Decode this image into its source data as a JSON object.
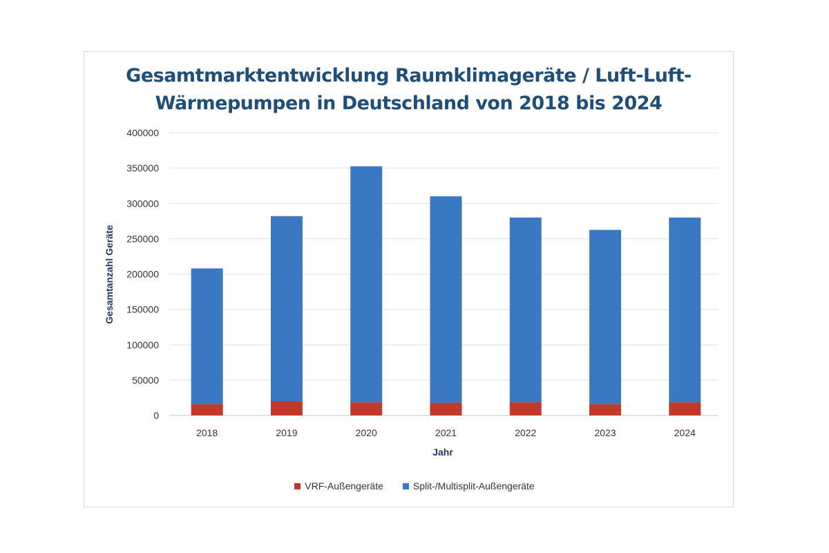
{
  "chart_data": {
    "type": "bar",
    "stacked": true,
    "title": "Gesamtmarktentwicklung Raumklimageräte / Luft-Luft-Wärmepumpen in Deutschland von 2018 bis 2024",
    "title_lines": [
      "Gesamtmarktentwicklung Raumklimageräte / Luft-Luft-",
      "Wärmepumpen in Deutschland von 2018 bis 2024"
    ],
    "xlabel": "Jahr",
    "ylabel": "Gesamtanzahl Geräte",
    "categories": [
      "2018",
      "2019",
      "2020",
      "2021",
      "2022",
      "2023",
      "2024"
    ],
    "ylim": [
      0,
      400000
    ],
    "yticks": [
      "0",
      "50000",
      "100000",
      "150000",
      "200000",
      "250000",
      "300000",
      "350000",
      "400000"
    ],
    "grid": true,
    "legend_position": "bottom",
    "series": [
      {
        "name": "VRF-Außengeräte",
        "color": "#c0392b",
        "values": [
          16000,
          20000,
          18500,
          18000,
          18500,
          16000,
          18500
        ]
      },
      {
        "name": "Split-/Multisplit-Außengeräte",
        "color": "#3a78c4",
        "values": [
          192000,
          262000,
          334000,
          292000,
          261500,
          246500,
          261500
        ]
      }
    ]
  }
}
